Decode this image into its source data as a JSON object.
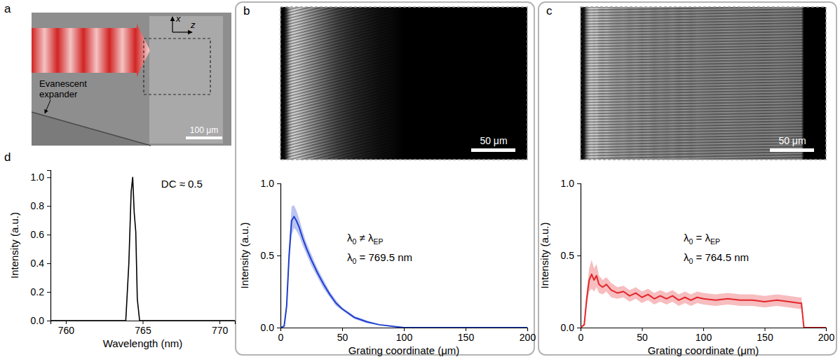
{
  "diagram": {
    "panel_label": "a",
    "axis_labels": [
      "x",
      "z"
    ],
    "expander_label": "Evanescent expander",
    "scale_bar": "100 μm"
  },
  "chart_data": [
    {
      "panel_label": "b",
      "type": "line",
      "image": {
        "scale_bar": "50 μm"
      },
      "x_label": "Grating coordinate (μm)",
      "y_label": "Intensity (a.u.)",
      "x": [
        0,
        3,
        5,
        7,
        9,
        11,
        13,
        15,
        18,
        21,
        25,
        30,
        35,
        40,
        45,
        50,
        60,
        70,
        80,
        90,
        100,
        125,
        150,
        175,
        200
      ],
      "series": [
        {
          "color": "#1f3fcf",
          "values": [
            0,
            0.01,
            0.15,
            0.5,
            0.74,
            0.77,
            0.74,
            0.7,
            0.62,
            0.55,
            0.47,
            0.38,
            0.3,
            0.23,
            0.17,
            0.13,
            0.07,
            0.04,
            0.02,
            0.01,
            0,
            0,
            0,
            0,
            0
          ],
          "error": [
            0,
            0.01,
            0.03,
            0.06,
            0.1,
            0.08,
            0.07,
            0.06,
            0.05,
            0.04,
            0.04,
            0.03,
            0.03,
            0.02,
            0.02,
            0.01,
            0.01,
            0.01,
            0,
            0,
            0,
            0,
            0,
            0,
            0
          ]
        }
      ],
      "xlim": [
        0,
        200
      ],
      "xticks": [
        0,
        50,
        100,
        150,
        200
      ],
      "ylim": [
        0,
        1
      ],
      "yticks": [
        {
          "value": 0,
          "label": "0.0"
        },
        {
          "value": 0.5,
          "label": "0.5"
        },
        {
          "value": 1,
          "label": "1.0"
        }
      ],
      "annotations": [
        [
          "λ",
          "0",
          " ≠ λ",
          "EP"
        ],
        [
          "λ",
          "0",
          " = 769.5 nm"
        ]
      ]
    },
    {
      "panel_label": "c",
      "type": "line",
      "image": {
        "scale_bar": "50 μm"
      },
      "x_label": "Grating coordinate (μm)",
      "y_label": "Intensity (a.u.)",
      "x": [
        0,
        3,
        5,
        7,
        9,
        11,
        13,
        15,
        18,
        21,
        25,
        30,
        35,
        40,
        45,
        50,
        55,
        60,
        65,
        70,
        75,
        80,
        85,
        90,
        95,
        100,
        110,
        120,
        130,
        140,
        150,
        160,
        170,
        178,
        180,
        182,
        190,
        200
      ],
      "series": [
        {
          "color": "#e3262b",
          "values": [
            0,
            0.02,
            0.2,
            0.33,
            0.37,
            0.33,
            0.36,
            0.3,
            0.28,
            0.3,
            0.26,
            0.24,
            0.25,
            0.22,
            0.24,
            0.21,
            0.23,
            0.2,
            0.22,
            0.2,
            0.22,
            0.19,
            0.21,
            0.19,
            0.21,
            0.2,
            0.19,
            0.2,
            0.19,
            0.19,
            0.18,
            0.19,
            0.18,
            0.17,
            0.17,
            0,
            0,
            0
          ],
          "error": [
            0,
            0.01,
            0.05,
            0.08,
            0.1,
            0.08,
            0.08,
            0.06,
            0.05,
            0.05,
            0.05,
            0.04,
            0.04,
            0.04,
            0.04,
            0.04,
            0.04,
            0.04,
            0.04,
            0.04,
            0.04,
            0.04,
            0.04,
            0.04,
            0.04,
            0.04,
            0.04,
            0.04,
            0.04,
            0.04,
            0.04,
            0.04,
            0.04,
            0.04,
            0.04,
            0,
            0,
            0
          ]
        }
      ],
      "xlim": [
        0,
        200
      ],
      "xticks": [
        0,
        50,
        100,
        150,
        200
      ],
      "ylim": [
        0,
        1
      ],
      "yticks": [
        {
          "value": 0,
          "label": "0.0"
        },
        {
          "value": 0.5,
          "label": "0.5"
        },
        {
          "value": 1,
          "label": "1.0"
        }
      ],
      "annotations": [
        [
          "λ",
          "0",
          " = λ",
          "EP"
        ],
        [
          "λ",
          "0",
          " = 764.5 nm"
        ]
      ]
    },
    {
      "panel_label": "d",
      "type": "line",
      "x_label": "Wavelength (nm)",
      "y_label": "Intensity (a.u.)",
      "x": [
        759,
        763.9,
        764.1,
        764.25,
        764.35,
        764.45,
        764.55,
        764.65,
        764.8,
        771
      ],
      "series": [
        {
          "color": "#000000",
          "values": [
            0,
            0,
            0.4,
            0.9,
            1.0,
            0.75,
            0.62,
            0.15,
            0,
            0
          ]
        }
      ],
      "xlim": [
        759,
        771
      ],
      "xticks": [
        760,
        765,
        770
      ],
      "ylim": [
        0,
        1.05
      ],
      "yticks": [
        {
          "value": 0,
          "label": "0.0"
        },
        {
          "value": 0.2,
          "label": "0.2"
        },
        {
          "value": 0.4,
          "label": "0.4"
        },
        {
          "value": 0.6,
          "label": "0.6"
        },
        {
          "value": 0.8,
          "label": "0.8"
        },
        {
          "value": 1,
          "label": "1.0"
        }
      ],
      "annotations": [
        [
          "DC ≈ 0.5"
        ]
      ]
    }
  ]
}
